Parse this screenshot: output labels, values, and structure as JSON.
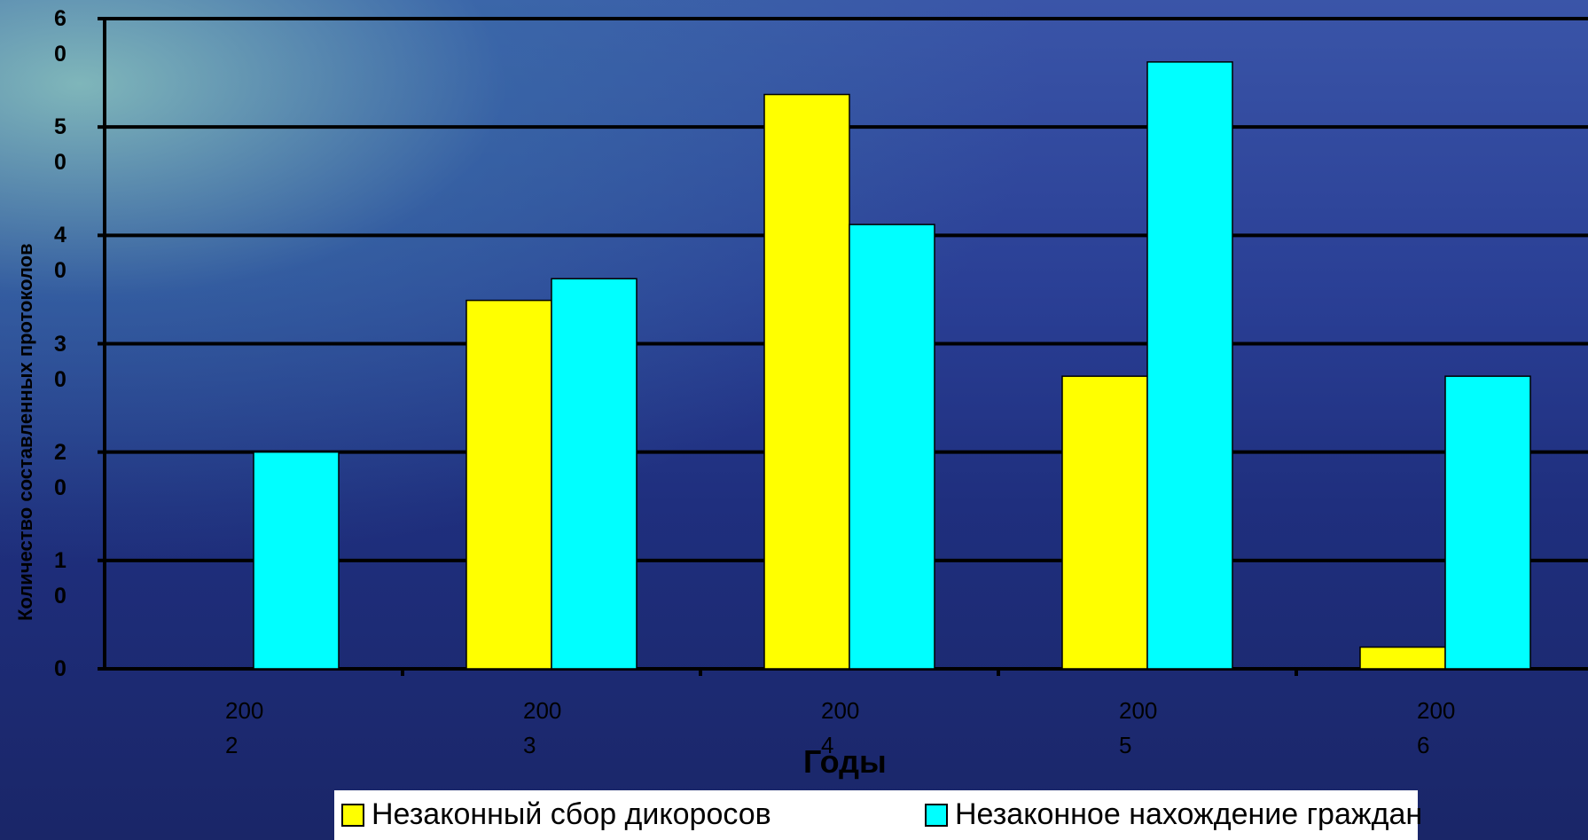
{
  "chart_data": {
    "type": "bar",
    "y_label": "Количество составленных протоколов",
    "x_label": "Годы",
    "categories": [
      "2002",
      "2003",
      "2004",
      "2005",
      "2006"
    ],
    "series": [
      {
        "name": "Незаконный сбор дикоросов",
        "color": "#ffff00",
        "values": [
          0,
          34,
          53,
          27,
          2
        ]
      },
      {
        "name": "Незаконное нахождение граждан",
        "color": "#00ffff",
        "values": [
          20,
          36,
          41,
          56,
          27
        ]
      }
    ],
    "ylim": [
      0,
      60
    ],
    "yticks": [
      0,
      10,
      20,
      30,
      40,
      50,
      60
    ],
    "grid": true,
    "legend": "bottom"
  }
}
